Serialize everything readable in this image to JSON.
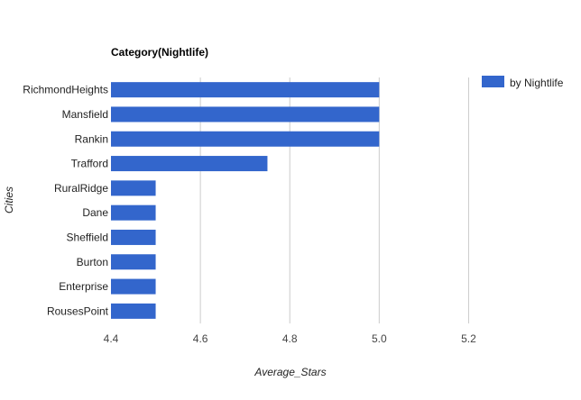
{
  "chart_data": {
    "type": "bar",
    "orientation": "horizontal",
    "title": "Category(Nightlife)",
    "xlabel": "Average_Stars",
    "ylabel": "Cities",
    "categories": [
      "RichmondHeights",
      "Mansfield",
      "Rankin",
      "Trafford",
      "RuralRidge",
      "Dane",
      "Sheffield",
      "Burton",
      "Enterprise",
      "RousesPoint"
    ],
    "series": [
      {
        "name": "by Nightlife",
        "values": [
          5.0,
          5.0,
          5.0,
          4.75,
          4.5,
          4.5,
          4.5,
          4.5,
          4.5,
          4.5
        ],
        "color": "#3366cc"
      }
    ],
    "xlim": [
      4.4,
      5.3
    ],
    "xticks": [
      "4.4",
      "4.6",
      "4.8",
      "5.0",
      "5.2"
    ],
    "grid": true,
    "legend_position": "right"
  }
}
